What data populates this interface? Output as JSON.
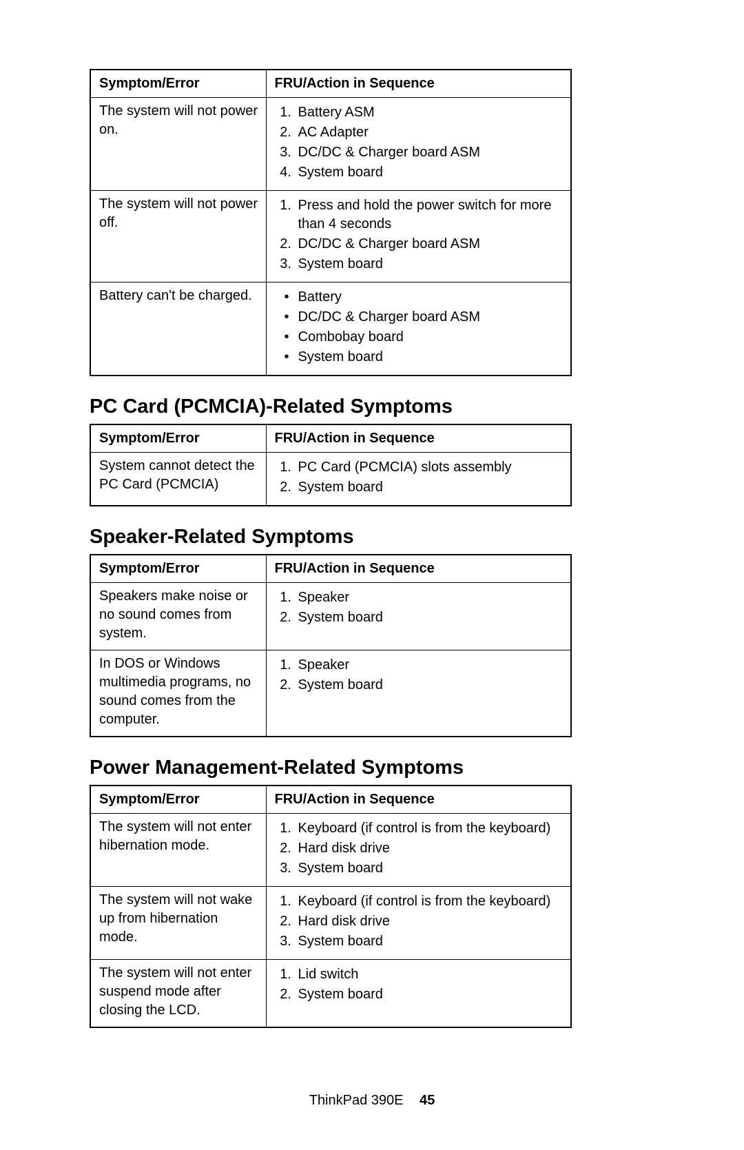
{
  "headers": {
    "symptom": "Symptom/Error",
    "action": "FRU/Action in Sequence"
  },
  "sections": [
    {
      "heading": null,
      "rows": [
        {
          "symptom": "The system will not power on.",
          "type": "ol",
          "items": [
            "Battery ASM",
            "AC Adapter",
            "DC/DC & Charger board ASM",
            "System board"
          ]
        },
        {
          "symptom": "The system will not power off.",
          "type": "ol",
          "items": [
            "Press and hold the power switch for more than 4 seconds",
            "DC/DC & Charger board ASM",
            "System board"
          ]
        },
        {
          "symptom": "Battery can't be charged.",
          "type": "ul",
          "items": [
            "Battery",
            "DC/DC & Charger board ASM",
            "Combobay board",
            "System board"
          ]
        }
      ]
    },
    {
      "heading": "PC Card (PCMCIA)-Related Symptoms",
      "rows": [
        {
          "symptom": "System cannot detect the PC Card (PCMCIA)",
          "type": "ol",
          "items": [
            "PC Card (PCMCIA) slots assembly",
            "System board"
          ]
        }
      ]
    },
    {
      "heading": "Speaker-Related Symptoms",
      "rows": [
        {
          "symptom": "Speakers make noise or no sound comes from system.",
          "type": "ol",
          "items": [
            "Speaker",
            "System board"
          ]
        },
        {
          "symptom": "In DOS or Windows multimedia programs, no sound comes from the computer.",
          "type": "ol",
          "items": [
            "Speaker",
            "System board"
          ]
        }
      ]
    },
    {
      "heading": "Power Management-Related Symptoms",
      "rows": [
        {
          "symptom": "The system will not enter hibernation mode.",
          "type": "ol",
          "items": [
            "Keyboard (if control is from the keyboard)",
            "Hard disk drive",
            "System board"
          ]
        },
        {
          "symptom": "The system will not wake up from hibernation mode.",
          "type": "ol",
          "items": [
            "Keyboard (if control is from the keyboard)",
            "Hard disk drive",
            "System board"
          ]
        },
        {
          "symptom": "The system will not enter suspend mode after closing the LCD.",
          "type": "ol",
          "items": [
            "Lid switch",
            "System board"
          ]
        }
      ]
    }
  ],
  "footer": {
    "model": "ThinkPad 390E",
    "page": "45"
  }
}
